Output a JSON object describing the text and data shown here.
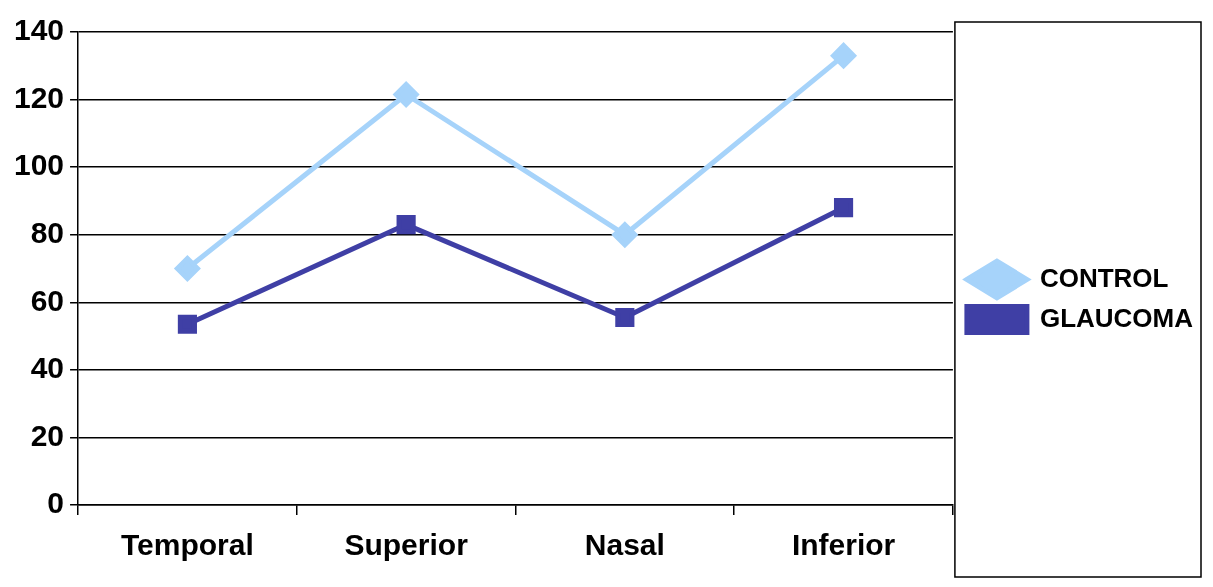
{
  "chart_data": {
    "type": "line",
    "categories": [
      "Temporal",
      "Superior",
      "Nasal",
      "Inferior"
    ],
    "series": [
      {
        "name": "CONTROL",
        "color": "#a6d3fa",
        "values": [
          70,
          121.5,
          80,
          133
        ],
        "marker": "diamond"
      },
      {
        "name": "GLAUCOMA",
        "color": "#3f3fa5",
        "values": [
          53.5,
          83,
          55.5,
          88
        ],
        "marker": "square"
      }
    ],
    "ylim": [
      0,
      140
    ],
    "yticks": [
      0,
      20,
      40,
      60,
      80,
      100,
      120,
      140
    ],
    "grid": "y",
    "legend": "right",
    "line_style": "solid"
  }
}
